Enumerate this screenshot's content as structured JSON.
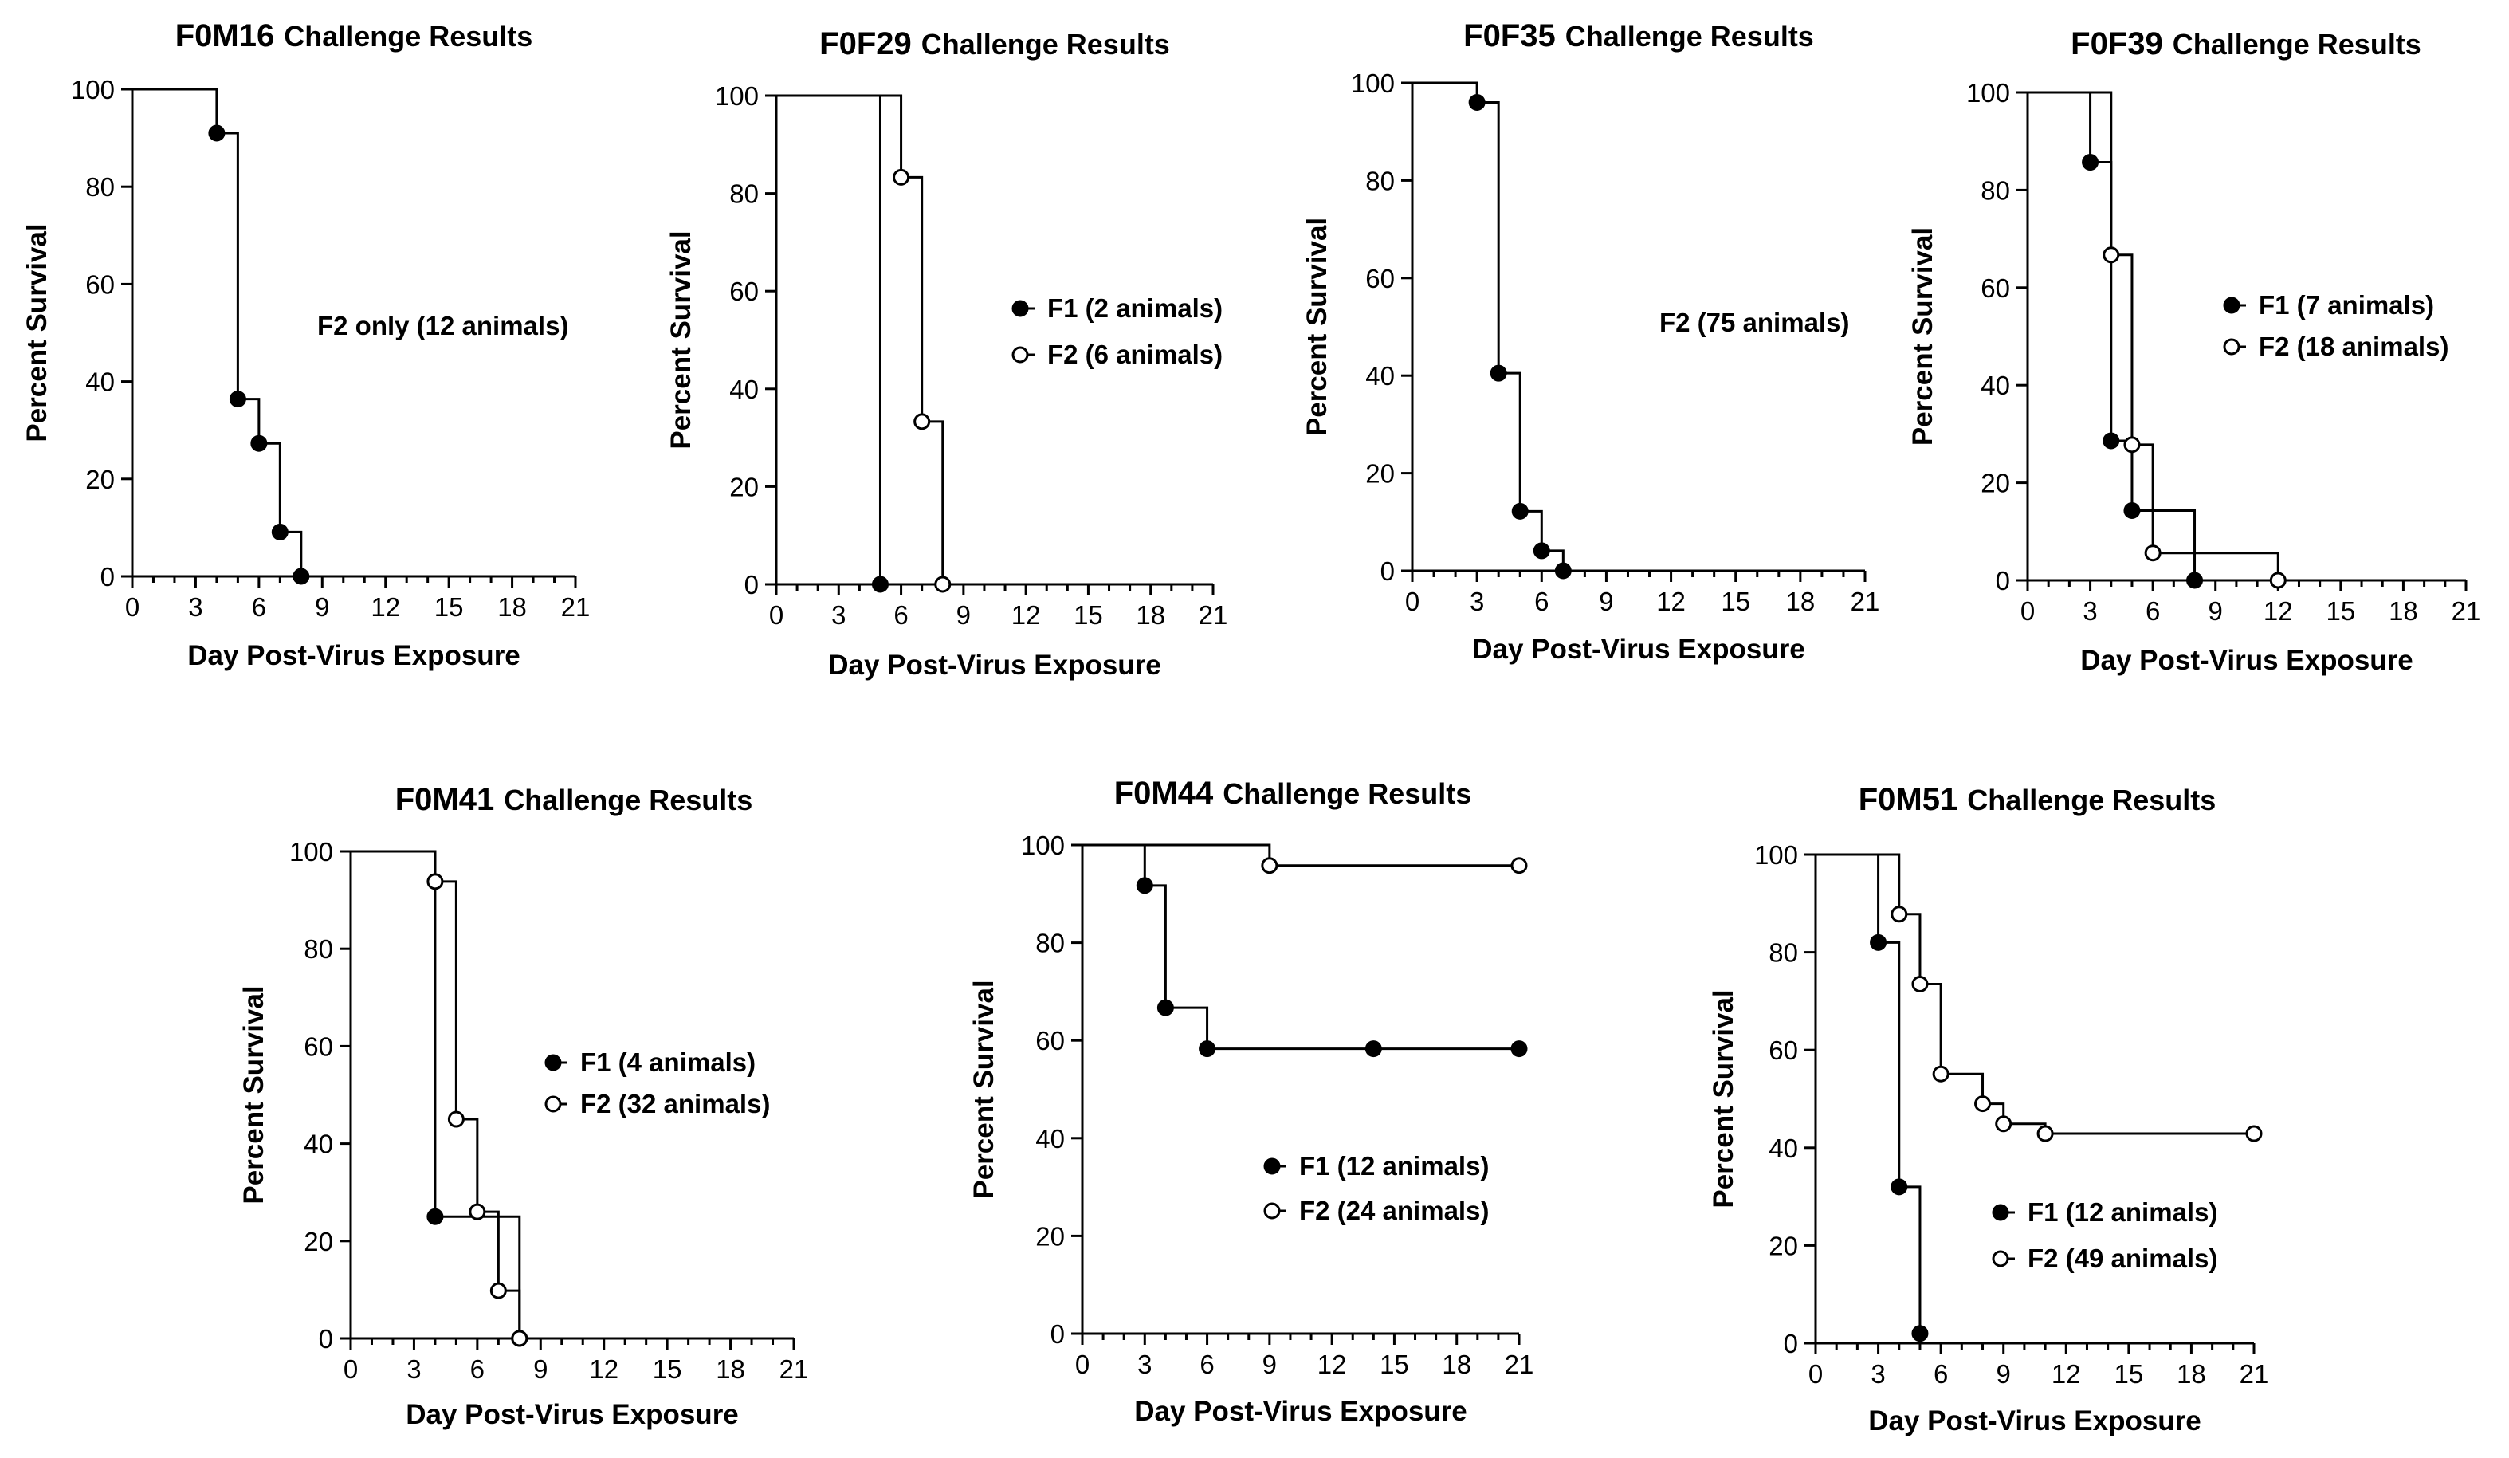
{
  "figure": {
    "background": "#ffffff",
    "ink": "#000000",
    "marker_open_fill": "#ffffff"
  },
  "chart_data": [
    {
      "type": "line",
      "step": true,
      "id": "F0M16",
      "title_suffix": "Challenge Results",
      "xlabel": "Day Post-Virus Exposure",
      "ylabel": "Percent Survival",
      "xlim": [
        0,
        21
      ],
      "ylim": [
        0,
        100
      ],
      "xticks": [
        0,
        3,
        6,
        9,
        12,
        15,
        18,
        21
      ],
      "yticks": [
        0,
        20,
        40,
        60,
        80,
        100
      ],
      "legend_position": "right-middle",
      "series": [
        {
          "name": "F2 only (12 animals)",
          "marker": "none-label-only",
          "steps": [
            [
              0,
              100
            ],
            [
              4,
              91
            ],
            [
              5,
              36.4
            ],
            [
              6,
              27.3
            ],
            [
              7,
              9.1
            ],
            [
              8,
              0
            ]
          ],
          "marker_points": [
            [
              4,
              91
            ],
            [
              5,
              36.4
            ],
            [
              6,
              27.3
            ],
            [
              7,
              9.1
            ],
            [
              8,
              0
            ]
          ],
          "marker_fill": "filled"
        }
      ]
    },
    {
      "type": "line",
      "step": true,
      "id": "F0F29",
      "title_suffix": "Challenge Results",
      "xlabel": "Day Post-Virus Exposure",
      "ylabel": "Percent Survival",
      "xlim": [
        0,
        21
      ],
      "ylim": [
        0,
        100
      ],
      "xticks": [
        0,
        3,
        6,
        9,
        12,
        15,
        18,
        21
      ],
      "yticks": [
        0,
        20,
        40,
        60,
        80,
        100
      ],
      "legend_position": "right-middle",
      "series": [
        {
          "name": "F1 (2 animals)",
          "marker_fill": "filled",
          "steps": [
            [
              0,
              100
            ],
            [
              5,
              0
            ]
          ],
          "marker_points": [
            [
              5,
              0
            ]
          ]
        },
        {
          "name": "F2 (6 animals)",
          "marker_fill": "open",
          "steps": [
            [
              0,
              100
            ],
            [
              6,
              83.3
            ],
            [
              7,
              33.3
            ],
            [
              8,
              0
            ]
          ],
          "marker_points": [
            [
              6,
              83.3
            ],
            [
              7,
              33.3
            ],
            [
              8,
              0
            ]
          ]
        }
      ]
    },
    {
      "type": "line",
      "step": true,
      "id": "F0F35",
      "title_suffix": "Challenge Results",
      "xlabel": "Day Post-Virus Exposure",
      "ylabel": "Percent Survival",
      "xlim": [
        0,
        21
      ],
      "ylim": [
        0,
        100
      ],
      "xticks": [
        0,
        3,
        6,
        9,
        12,
        15,
        18,
        21
      ],
      "yticks": [
        0,
        20,
        40,
        60,
        80,
        100
      ],
      "legend_position": "right-middle",
      "series": [
        {
          "name": "F2 (75 animals)",
          "marker": "none-label-only",
          "marker_fill": "filled",
          "steps": [
            [
              0,
              100
            ],
            [
              3,
              96
            ],
            [
              4,
              40.5
            ],
            [
              5,
              12.2
            ],
            [
              6,
              4.1
            ],
            [
              7,
              0
            ]
          ],
          "marker_points": [
            [
              3,
              96
            ],
            [
              4,
              40.5
            ],
            [
              5,
              12.2
            ],
            [
              6,
              4.1
            ],
            [
              7,
              0
            ]
          ]
        }
      ]
    },
    {
      "type": "line",
      "step": true,
      "id": "F0F39",
      "title_suffix": "Challenge Results",
      "xlabel": "Day Post-Virus Exposure",
      "ylabel": "Percent Survival",
      "xlim": [
        0,
        21
      ],
      "ylim": [
        0,
        100
      ],
      "xticks": [
        0,
        3,
        6,
        9,
        12,
        15,
        18,
        21
      ],
      "yticks": [
        0,
        20,
        40,
        60,
        80,
        100
      ],
      "legend_position": "right-middle",
      "series": [
        {
          "name": "F1 (7 animals)",
          "marker_fill": "filled",
          "steps": [
            [
              0,
              100
            ],
            [
              3,
              85.7
            ],
            [
              4,
              28.6
            ],
            [
              5,
              14.3
            ],
            [
              8,
              0
            ]
          ],
          "marker_points": [
            [
              3,
              85.7
            ],
            [
              4,
              28.6
            ],
            [
              5,
              14.3
            ],
            [
              8,
              0
            ]
          ]
        },
        {
          "name": "F2 (18 animals)",
          "marker_fill": "open",
          "steps": [
            [
              0,
              100
            ],
            [
              4,
              66.7
            ],
            [
              5,
              27.8
            ],
            [
              6,
              5.6
            ],
            [
              12,
              0
            ]
          ],
          "marker_points": [
            [
              4,
              66.7
            ],
            [
              5,
              27.8
            ],
            [
              6,
              5.6
            ],
            [
              12,
              0
            ]
          ]
        }
      ]
    },
    {
      "type": "line",
      "step": true,
      "id": "F0M41",
      "title_suffix": "Challenge Results",
      "xlabel": "Day Post-Virus Exposure",
      "ylabel": "Percent Survival",
      "xlim": [
        0,
        21
      ],
      "ylim": [
        0,
        100
      ],
      "xticks": [
        0,
        3,
        6,
        9,
        12,
        15,
        18,
        21
      ],
      "yticks": [
        0,
        20,
        40,
        60,
        80,
        100
      ],
      "legend_position": "right-middle",
      "series": [
        {
          "name": "F1 (4 animals)",
          "marker_fill": "filled",
          "steps": [
            [
              0,
              100
            ],
            [
              4,
              25
            ],
            [
              8,
              0
            ]
          ],
          "marker_points": [
            [
              4,
              25
            ],
            [
              8,
              0
            ]
          ]
        },
        {
          "name": "F2 (32 animals)",
          "marker_fill": "open",
          "steps": [
            [
              0,
              100
            ],
            [
              4,
              93.8
            ],
            [
              5,
              45
            ],
            [
              6,
              26
            ],
            [
              7,
              9.8
            ],
            [
              8,
              0
            ]
          ],
          "marker_points": [
            [
              4,
              93.8
            ],
            [
              5,
              45
            ],
            [
              6,
              26
            ],
            [
              7,
              9.8
            ],
            [
              8,
              0
            ]
          ]
        }
      ]
    },
    {
      "type": "line",
      "step": true,
      "id": "F0M44",
      "title_suffix": "Challenge Results",
      "xlabel": "Day Post-Virus Exposure",
      "ylabel": "Percent Survival",
      "xlim": [
        0,
        21
      ],
      "ylim": [
        0,
        100
      ],
      "xticks": [
        0,
        3,
        6,
        9,
        12,
        15,
        18,
        21
      ],
      "yticks": [
        0,
        20,
        40,
        60,
        80,
        100
      ],
      "legend_position": "bottom-right",
      "series": [
        {
          "name": "F1 (12 animals)",
          "marker_fill": "filled",
          "steps": [
            [
              0,
              100
            ],
            [
              3,
              91.7
            ],
            [
              4,
              66.7
            ],
            [
              6,
              58.3
            ],
            [
              21,
              58.3
            ]
          ],
          "marker_points": [
            [
              3,
              91.7
            ],
            [
              4,
              66.7
            ],
            [
              6,
              58.3
            ],
            [
              14,
              58.3
            ],
            [
              21,
              58.3
            ]
          ]
        },
        {
          "name": "F2 (24 animals)",
          "marker_fill": "open",
          "steps": [
            [
              0,
              100
            ],
            [
              9,
              95.8
            ],
            [
              21,
              95.8
            ]
          ],
          "marker_points": [
            [
              9,
              95.8
            ],
            [
              21,
              95.8
            ]
          ]
        }
      ]
    },
    {
      "type": "line",
      "step": true,
      "id": "F0M51",
      "title_suffix": "Challenge Results",
      "xlabel": "Day Post-Virus Exposure",
      "ylabel": "Percent Survival",
      "xlim": [
        0,
        21
      ],
      "ylim": [
        0,
        100
      ],
      "xticks": [
        0,
        3,
        6,
        9,
        12,
        15,
        18,
        21
      ],
      "yticks": [
        0,
        20,
        40,
        60,
        80,
        100
      ],
      "legend_position": "bottom-right",
      "series": [
        {
          "name": "F1 (12 animals)",
          "marker_fill": "filled",
          "steps": [
            [
              0,
              100
            ],
            [
              3,
              82
            ],
            [
              4,
              32
            ],
            [
              5,
              2
            ]
          ],
          "marker_points": [
            [
              3,
              82
            ],
            [
              4,
              32
            ],
            [
              5,
              2
            ]
          ]
        },
        {
          "name": "F2 (49 animals)",
          "marker_fill": "open",
          "steps": [
            [
              0,
              100
            ],
            [
              4,
              87.8
            ],
            [
              5,
              73.5
            ],
            [
              6,
              55.1
            ],
            [
              8,
              49
            ],
            [
              9,
              44.9
            ],
            [
              11,
              42.9
            ],
            [
              21,
              42.9
            ]
          ],
          "marker_points": [
            [
              4,
              87.8
            ],
            [
              5,
              73.5
            ],
            [
              6,
              55.1
            ],
            [
              8,
              49
            ],
            [
              9,
              44.9
            ],
            [
              11,
              42.9
            ],
            [
              21,
              42.9
            ]
          ]
        }
      ]
    }
  ]
}
